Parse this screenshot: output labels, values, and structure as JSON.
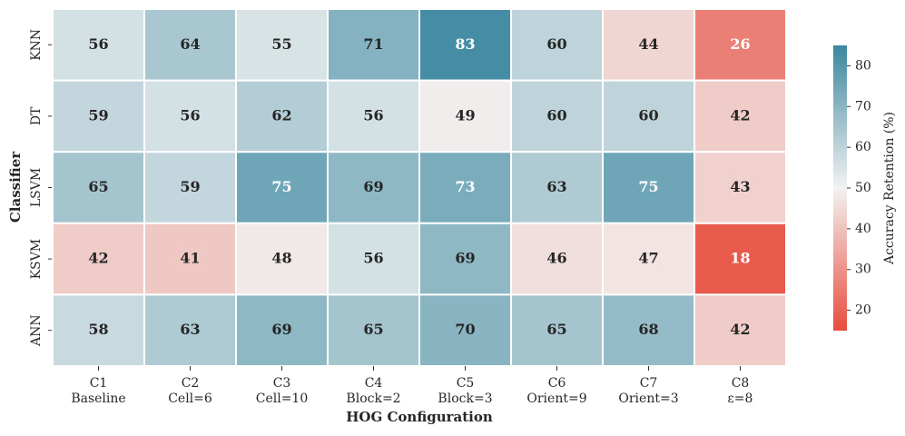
{
  "chart_data": {
    "type": "heatmap",
    "x_label": "HOG Configuration",
    "y_label": "Classifier",
    "categories": [
      "C1",
      "C2",
      "C3",
      "C4",
      "C5",
      "C6",
      "C7",
      "C8"
    ],
    "category_subtitles": [
      "Baseline",
      "Cell=6",
      "Cell=10",
      "Block=2",
      "Block=3",
      "Orient=9",
      "Orient=3",
      "ε=8"
    ],
    "rows": [
      "KNN",
      "DT",
      "LSVM",
      "KSVM",
      "ANN"
    ],
    "values": [
      [
        56,
        64,
        55,
        71,
        83,
        60,
        44,
        26
      ],
      [
        59,
        56,
        62,
        56,
        49,
        60,
        60,
        42
      ],
      [
        65,
        59,
        75,
        69,
        73,
        63,
        75,
        43
      ],
      [
        42,
        41,
        48,
        56,
        69,
        46,
        47,
        18
      ],
      [
        58,
        63,
        69,
        65,
        70,
        65,
        68,
        42
      ]
    ],
    "colorbar_label": "Accuracy Retention (%)",
    "colors": [
      "#e74c3c",
      "#f2f2f2",
      "#3b879f"
    ],
    "center": 50,
    "clim": [
      15,
      85
    ],
    "cticks": [
      20,
      30,
      40,
      50,
      60,
      70,
      80
    ]
  }
}
